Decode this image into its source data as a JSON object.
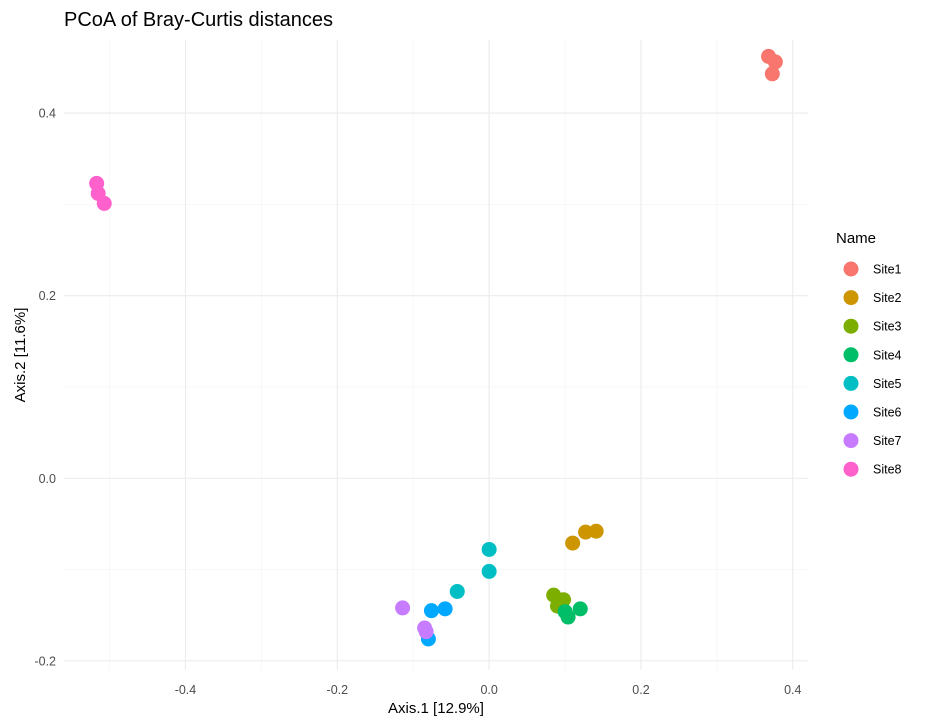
{
  "chart_data": {
    "type": "scatter",
    "title": "PCoA of Bray-Curtis distances",
    "xlabel": "Axis.1   [12.9%]",
    "ylabel": "Axis.2   [11.6%]",
    "xlim": [
      -0.56,
      0.42
    ],
    "ylim": [
      -0.21,
      0.48
    ],
    "x_ticks": [
      -0.4,
      -0.2,
      0.0,
      0.2,
      0.4
    ],
    "x_tick_labels": [
      "-0.4",
      "-0.2",
      "0.0",
      "0.2",
      "0.4"
    ],
    "y_ticks": [
      -0.2,
      0.0,
      0.2,
      0.4
    ],
    "y_tick_labels": [
      "-0.2",
      "0.0",
      "0.2",
      "0.4"
    ],
    "grid": true,
    "legend": {
      "title": "Name",
      "position": "right"
    },
    "series": [
      {
        "name": "Site1",
        "color": "#F8766D",
        "points": [
          [
            0.368,
            0.462
          ],
          [
            0.377,
            0.456
          ],
          [
            0.373,
            0.443
          ]
        ]
      },
      {
        "name": "Site2",
        "color": "#CD9600",
        "points": [
          [
            0.11,
            -0.071
          ],
          [
            0.127,
            -0.059
          ],
          [
            0.141,
            -0.058
          ]
        ]
      },
      {
        "name": "Site3",
        "color": "#7CAE00",
        "points": [
          [
            0.085,
            -0.128
          ],
          [
            0.09,
            -0.14
          ],
          [
            0.098,
            -0.133
          ]
        ]
      },
      {
        "name": "Site4",
        "color": "#00BE67",
        "points": [
          [
            0.1,
            -0.146
          ],
          [
            0.104,
            -0.152
          ],
          [
            0.12,
            -0.143
          ]
        ]
      },
      {
        "name": "Site5",
        "color": "#00BFC4",
        "points": [
          [
            0.0,
            -0.078
          ],
          [
            0.0,
            -0.102
          ],
          [
            -0.042,
            -0.124
          ]
        ]
      },
      {
        "name": "Site6",
        "color": "#00A9FF",
        "points": [
          [
            -0.058,
            -0.143
          ],
          [
            -0.076,
            -0.145
          ],
          [
            -0.08,
            -0.176
          ]
        ]
      },
      {
        "name": "Site7",
        "color": "#C77CFF",
        "points": [
          [
            -0.114,
            -0.142
          ],
          [
            -0.085,
            -0.164
          ],
          [
            -0.083,
            -0.168
          ]
        ]
      },
      {
        "name": "Site8",
        "color": "#FF61CC",
        "points": [
          [
            -0.517,
            0.323
          ],
          [
            -0.515,
            0.312
          ],
          [
            -0.507,
            0.301
          ]
        ]
      }
    ]
  }
}
